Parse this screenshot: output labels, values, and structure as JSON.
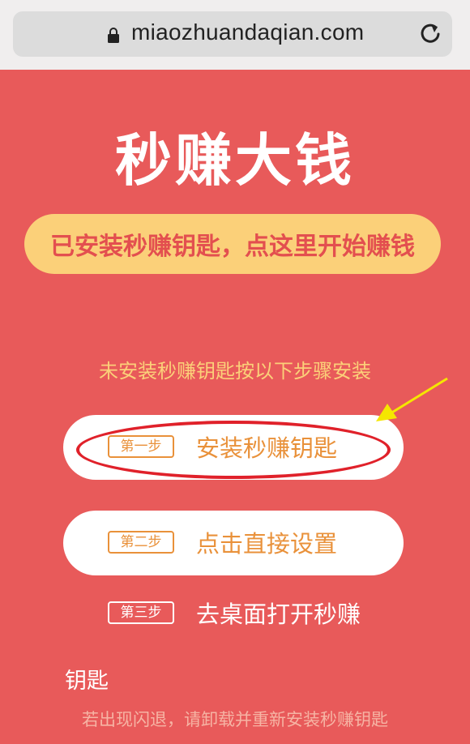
{
  "browser": {
    "url": "miaozhuandaqian.com",
    "lock_icon": "lock-icon",
    "reload_icon": "reload-icon"
  },
  "page": {
    "title": "秒赚大钱",
    "start_button": "已安装秒赚钥匙，点这里开始赚钱",
    "install_hint": "未安装秒赚钥匙按以下步骤安装",
    "steps": [
      {
        "tag": "第一步",
        "label": "安装秒赚钥匙"
      },
      {
        "tag": "第二步",
        "label": "点击直接设置"
      },
      {
        "tag": "第三步",
        "label": "去桌面打开秒赚"
      }
    ],
    "key_label": "钥匙",
    "note": "若出现闪退，请卸载并重新安装秒赚钥匙"
  },
  "colors": {
    "background": "#e85a5a",
    "accent_yellow": "#fbd079",
    "step_orange": "#e9913a",
    "highlight_red": "#e0212a"
  }
}
